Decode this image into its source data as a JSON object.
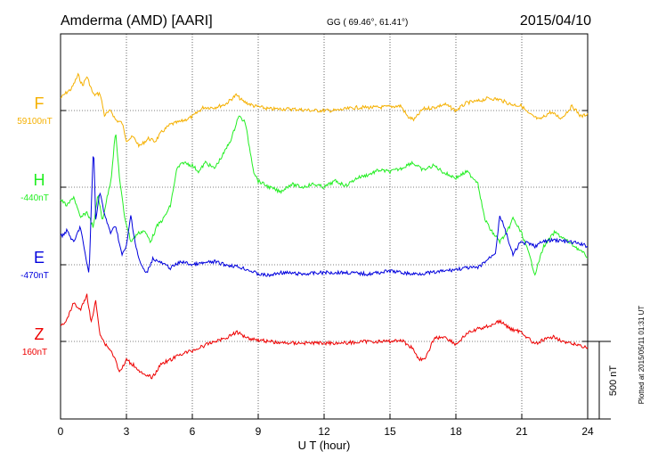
{
  "header": {
    "station": "Amderma (AMD)  [AARI]",
    "coords": "GG ( 69.46°,  61.41°)",
    "date": "2015/04/10"
  },
  "footer_note": "Plotted at 2015/05/11 01:31  UT",
  "chart_data": {
    "type": "line",
    "xlabel": "U T (hour)",
    "xlim": [
      0,
      24
    ],
    "xticks": [
      "0",
      "3",
      "6",
      "9",
      "12",
      "15",
      "18",
      "21",
      "24"
    ],
    "scale_bar": {
      "label": "500 nT",
      "value_nT": 500
    },
    "series": [
      {
        "name": "F",
        "baseline_label": "59100nT",
        "color": "#f5b000",
        "offsets_nT": [
          [
            0.0,
            80
          ],
          [
            0.3,
            120
          ],
          [
            0.5,
            140
          ],
          [
            0.8,
            230
          ],
          [
            1.0,
            160
          ],
          [
            1.2,
            220
          ],
          [
            1.5,
            100
          ],
          [
            1.8,
            110
          ],
          [
            2.0,
            -30
          ],
          [
            2.3,
            0
          ],
          [
            2.5,
            -60
          ],
          [
            2.8,
            -80
          ],
          [
            3.0,
            -190
          ],
          [
            3.3,
            -170
          ],
          [
            3.6,
            -230
          ],
          [
            4.0,
            -180
          ],
          [
            4.3,
            -200
          ],
          [
            4.6,
            -140
          ],
          [
            5.0,
            -90
          ],
          [
            5.5,
            -70
          ],
          [
            6.0,
            -40
          ],
          [
            6.5,
            20
          ],
          [
            7.0,
            20
          ],
          [
            7.5,
            40
          ],
          [
            8.0,
            100
          ],
          [
            8.3,
            60
          ],
          [
            8.8,
            30
          ],
          [
            9.5,
            10
          ],
          [
            10.5,
            10
          ],
          [
            11.5,
            0
          ],
          [
            12.5,
            0
          ],
          [
            13.5,
            20
          ],
          [
            14.5,
            20
          ],
          [
            15.5,
            30
          ],
          [
            15.8,
            -40
          ],
          [
            16.1,
            -60
          ],
          [
            16.5,
            10
          ],
          [
            17.0,
            20
          ],
          [
            17.5,
            40
          ],
          [
            18.0,
            0
          ],
          [
            18.5,
            50
          ],
          [
            19.0,
            60
          ],
          [
            19.5,
            80
          ],
          [
            20.0,
            70
          ],
          [
            20.5,
            40
          ],
          [
            21.0,
            30
          ],
          [
            21.3,
            -20
          ],
          [
            21.8,
            -60
          ],
          [
            22.3,
            -10
          ],
          [
            22.8,
            -50
          ],
          [
            23.3,
            30
          ],
          [
            23.7,
            -40
          ],
          [
            24.0,
            -20
          ]
        ]
      },
      {
        "name": "H",
        "baseline_label": "-440nT",
        "color": "#22ee22",
        "offsets_nT": [
          [
            0.0,
            -80
          ],
          [
            0.3,
            -120
          ],
          [
            0.6,
            -60
          ],
          [
            0.9,
            -200
          ],
          [
            1.2,
            -160
          ],
          [
            1.5,
            -260
          ],
          [
            1.7,
            -40
          ],
          [
            1.9,
            -220
          ],
          [
            2.1,
            -80
          ],
          [
            2.3,
            50
          ],
          [
            2.5,
            360
          ],
          [
            2.7,
            40
          ],
          [
            2.9,
            -180
          ],
          [
            3.2,
            -350
          ],
          [
            3.5,
            -300
          ],
          [
            3.8,
            -280
          ],
          [
            4.1,
            -350
          ],
          [
            4.4,
            -250
          ],
          [
            4.7,
            -200
          ],
          [
            5.0,
            -120
          ],
          [
            5.3,
            120
          ],
          [
            5.6,
            160
          ],
          [
            6.0,
            140
          ],
          [
            6.3,
            100
          ],
          [
            6.6,
            160
          ],
          [
            7.0,
            120
          ],
          [
            7.4,
            210
          ],
          [
            7.8,
            320
          ],
          [
            8.1,
            460
          ],
          [
            8.4,
            420
          ],
          [
            8.8,
            100
          ],
          [
            9.0,
            40
          ],
          [
            9.5,
            0
          ],
          [
            10.0,
            -30
          ],
          [
            10.5,
            20
          ],
          [
            11.0,
            0
          ],
          [
            11.5,
            20
          ],
          [
            12.0,
            0
          ],
          [
            12.5,
            40
          ],
          [
            13.0,
            10
          ],
          [
            13.5,
            60
          ],
          [
            14.0,
            80
          ],
          [
            14.5,
            110
          ],
          [
            15.0,
            100
          ],
          [
            15.5,
            120
          ],
          [
            16.0,
            160
          ],
          [
            16.5,
            110
          ],
          [
            17.0,
            140
          ],
          [
            17.5,
            90
          ],
          [
            18.0,
            60
          ],
          [
            18.5,
            100
          ],
          [
            19.0,
            30
          ],
          [
            19.3,
            -200
          ],
          [
            19.6,
            -280
          ],
          [
            20.0,
            -350
          ],
          [
            20.3,
            -300
          ],
          [
            20.6,
            -200
          ],
          [
            21.0,
            -300
          ],
          [
            21.3,
            -420
          ],
          [
            21.6,
            -560
          ],
          [
            22.0,
            -380
          ],
          [
            22.5,
            -290
          ],
          [
            23.0,
            -340
          ],
          [
            23.5,
            -390
          ],
          [
            24.0,
            -450
          ]
        ]
      },
      {
        "name": "E",
        "baseline_label": "-470nT",
        "color": "#0000dd",
        "offsets_nT": [
          [
            0.0,
            180
          ],
          [
            0.3,
            220
          ],
          [
            0.6,
            140
          ],
          [
            0.9,
            250
          ],
          [
            1.1,
            80
          ],
          [
            1.3,
            -60
          ],
          [
            1.5,
            780
          ],
          [
            1.6,
            300
          ],
          [
            1.8,
            470
          ],
          [
            2.0,
            320
          ],
          [
            2.3,
            200
          ],
          [
            2.5,
            260
          ],
          [
            2.8,
            60
          ],
          [
            3.0,
            120
          ],
          [
            3.2,
            320
          ],
          [
            3.4,
            140
          ],
          [
            3.6,
            20
          ],
          [
            3.9,
            -60
          ],
          [
            4.2,
            40
          ],
          [
            4.6,
            10
          ],
          [
            5.0,
            -20
          ],
          [
            5.5,
            20
          ],
          [
            6.0,
            0
          ],
          [
            6.5,
            10
          ],
          [
            7.0,
            20
          ],
          [
            7.5,
            0
          ],
          [
            8.0,
            -10
          ],
          [
            8.5,
            -30
          ],
          [
            9.0,
            -60
          ],
          [
            9.5,
            -70
          ],
          [
            10.0,
            -50
          ],
          [
            11.0,
            -60
          ],
          [
            12.0,
            -50
          ],
          [
            13.0,
            -50
          ],
          [
            14.0,
            -60
          ],
          [
            15.0,
            -40
          ],
          [
            16.0,
            -60
          ],
          [
            17.0,
            -50
          ],
          [
            18.0,
            -30
          ],
          [
            18.5,
            -20
          ],
          [
            19.0,
            -20
          ],
          [
            19.5,
            40
          ],
          [
            19.8,
            80
          ],
          [
            20.0,
            320
          ],
          [
            20.3,
            200
          ],
          [
            20.6,
            60
          ],
          [
            20.9,
            140
          ],
          [
            21.2,
            140
          ],
          [
            21.6,
            120
          ],
          [
            22.0,
            150
          ],
          [
            22.5,
            160
          ],
          [
            23.0,
            150
          ],
          [
            23.5,
            140
          ],
          [
            24.0,
            120
          ]
        ]
      },
      {
        "name": "Z",
        "baseline_label": "160nT",
        "color": "#ee0000",
        "offsets_nT": [
          [
            0.0,
            100
          ],
          [
            0.3,
            140
          ],
          [
            0.6,
            250
          ],
          [
            0.9,
            200
          ],
          [
            1.2,
            300
          ],
          [
            1.4,
            120
          ],
          [
            1.6,
            260
          ],
          [
            1.8,
            50
          ],
          [
            2.0,
            -10
          ],
          [
            2.3,
            -60
          ],
          [
            2.5,
            -120
          ],
          [
            2.7,
            -200
          ],
          [
            3.0,
            -120
          ],
          [
            3.4,
            -160
          ],
          [
            3.8,
            -220
          ],
          [
            4.2,
            -230
          ],
          [
            4.6,
            -140
          ],
          [
            5.0,
            -120
          ],
          [
            5.5,
            -80
          ],
          [
            6.0,
            -60
          ],
          [
            6.5,
            -30
          ],
          [
            7.0,
            0
          ],
          [
            7.5,
            20
          ],
          [
            8.0,
            60
          ],
          [
            8.3,
            40
          ],
          [
            8.6,
            20
          ],
          [
            9.0,
            10
          ],
          [
            10.0,
            -10
          ],
          [
            11.0,
            -10
          ],
          [
            12.0,
            -10
          ],
          [
            13.0,
            -10
          ],
          [
            14.0,
            0
          ],
          [
            15.0,
            0
          ],
          [
            15.5,
            10
          ],
          [
            16.0,
            -40
          ],
          [
            16.3,
            -110
          ],
          [
            16.6,
            -120
          ],
          [
            17.0,
            20
          ],
          [
            17.5,
            30
          ],
          [
            18.0,
            -20
          ],
          [
            18.5,
            50
          ],
          [
            19.0,
            80
          ],
          [
            19.5,
            100
          ],
          [
            20.0,
            130
          ],
          [
            20.5,
            80
          ],
          [
            21.0,
            60
          ],
          [
            21.3,
            20
          ],
          [
            21.6,
            -20
          ],
          [
            22.0,
            10
          ],
          [
            22.5,
            30
          ],
          [
            23.0,
            -10
          ],
          [
            23.5,
            -20
          ],
          [
            24.0,
            -40
          ]
        ]
      }
    ]
  }
}
